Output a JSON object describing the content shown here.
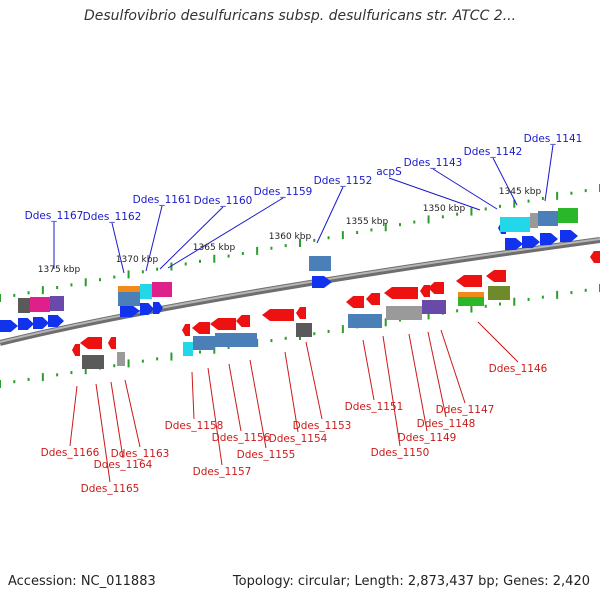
{
  "title": "Desulfovibrio desulfuricans subsp. desulfuricans str. ATCC 2...",
  "accession": "Accession: NC_011883",
  "summary": "Topology: circular; Length: 2,873,437 bp; Genes: 2,420",
  "colors": {
    "backbone": "#7a7a7a",
    "ticks": "#2a9d2a",
    "forward_label": "#1a1acc",
    "reverse_label": "#cc1a1a",
    "cds_red": "#ee1111",
    "cds_blue": "#1133ee",
    "cog_steelblue": "#4a7fb8",
    "cog_gray": "#9a9a9a",
    "cog_magenta": "#e0208a",
    "cog_purple": "#6a4aa8",
    "cog_cyan": "#22d8e8",
    "cog_orange": "#f08a1a",
    "cog_green": "#2ab82a",
    "cog_olive": "#6f8a2a",
    "cog_darkgray": "#5a5a5a"
  },
  "scale_labels": [
    "1345 kbp",
    "1350 kbp",
    "1355 kbp",
    "1360 kbp",
    "1365 kbp",
    "1370 kbp",
    "1375 kbp"
  ],
  "forward_genes": [
    "Ddes_1141",
    "Ddes_1142",
    "Ddes_1143",
    "acpS",
    "Ddes_1152",
    "Ddes_1159",
    "Ddes_1160",
    "Ddes_1161",
    "Ddes_1162",
    "Ddes_1167"
  ],
  "reverse_genes": [
    "Ddes_1146",
    "Ddes_1147",
    "Ddes_1148",
    "Ddes_1149",
    "Ddes_1150",
    "Ddes_1151",
    "Ddes_1153",
    "Ddes_1154",
    "Ddes_1155",
    "Ddes_1156",
    "Ddes_1157",
    "Ddes_1158",
    "Ddes_1163",
    "Ddes_1164",
    "Ddes_1165",
    "Ddes_1166"
  ]
}
